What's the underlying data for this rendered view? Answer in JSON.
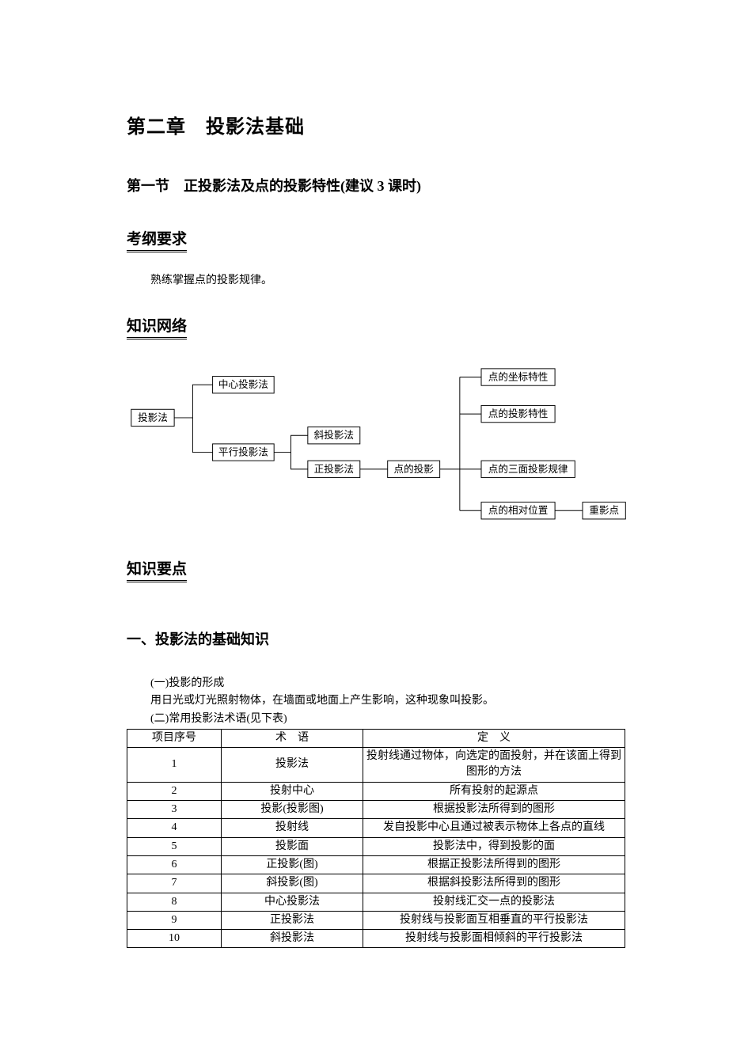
{
  "chapter_title": "第二章　投影法基础",
  "section_title": "第一节　正投影法及点的投影特性(建议 3 课时)",
  "heading_outline": "考纲要求",
  "outline_text": "熟练掌握点的投影规律。",
  "heading_network": "知识网络",
  "heading_points": "知识要点",
  "h2_basics": "一、投影法的基础知识",
  "para_1a": "(一)投影的形成",
  "para_1b": "用日光或灯光照射物体，在墙面或地面上产生影响，这种现象叫投影。",
  "para_2": "(二)常用投影法术语(见下表)",
  "table": {
    "columns": [
      "项目序号",
      "术　语",
      "定　义"
    ],
    "rows": [
      [
        "1",
        "投影法",
        "投射线通过物体，向选定的面投射，并在该面上得到图形的方法"
      ],
      [
        "2",
        "投射中心",
        "所有投射的起源点"
      ],
      [
        "3",
        "投影(投影图)",
        "根据投影法所得到的图形"
      ],
      [
        "4",
        "投射线",
        "发自投影中心且通过被表示物体上各点的直线"
      ],
      [
        "5",
        "投影面",
        "投影法中，得到投影的面"
      ],
      [
        "6",
        "正投影(图)",
        "根据正投影法所得到的图形"
      ],
      [
        "7",
        "斜投影(图)",
        "根据斜投影法所得到的图形"
      ],
      [
        "8",
        "中心投影法",
        "投射线汇交一点的投影法"
      ],
      [
        "9",
        "正投影法",
        "投射线与投影面互相垂直的平行投影法"
      ],
      [
        "10",
        "斜投影法",
        "投射线与投影面相倾斜的平行投影法"
      ]
    ]
  },
  "diagram": {
    "n_root": {
      "label": "投影法"
    },
    "n_center": {
      "label": "中心投影法"
    },
    "n_parallel": {
      "label": "平行投影法"
    },
    "n_oblique": {
      "label": "斜投影法"
    },
    "n_ortho": {
      "label": "正投影法"
    },
    "n_point": {
      "label": "点的投影"
    },
    "n_coord": {
      "label": "点的坐标特性"
    },
    "n_pchar": {
      "label": "点的投影特性"
    },
    "n_3plane": {
      "label": "点的三面投影规律"
    },
    "n_relpos": {
      "label": "点的相对位置"
    },
    "n_coinc": {
      "label": "重影点"
    }
  }
}
